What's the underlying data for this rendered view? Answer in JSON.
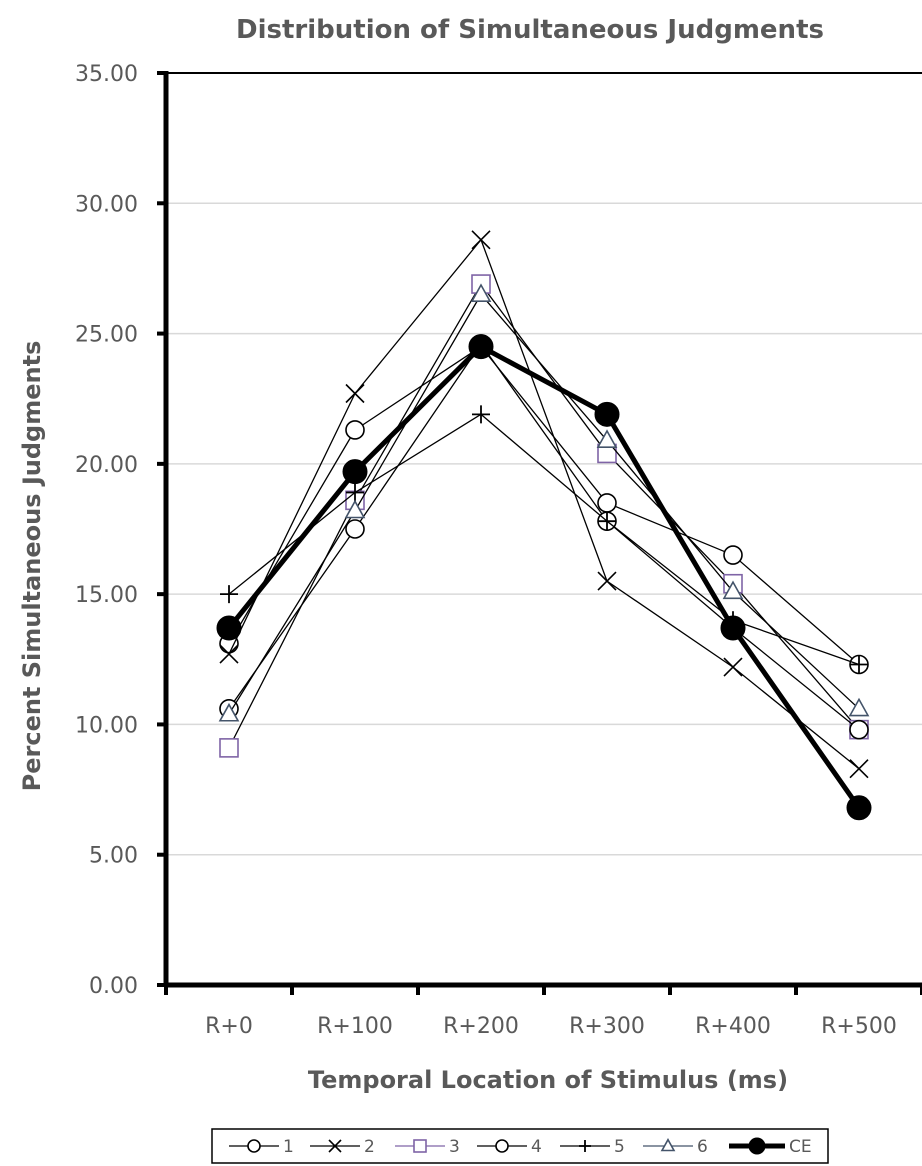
{
  "chart_data": {
    "type": "line",
    "title": "Distribution of Simultaneous Judgments",
    "xlabel": "Temporal Location of Stimulus (ms)",
    "ylabel": "Percent Simultaneous Judgments",
    "categories": [
      "R+0",
      "R+100",
      "R+200",
      "R+300",
      "R+400",
      "R+500"
    ],
    "ylim": [
      0,
      35
    ],
    "yticks": [
      "0.00",
      "5.00",
      "10.00",
      "15.00",
      "20.00",
      "25.00",
      "30.00",
      "35.00"
    ],
    "grid": "horizontal",
    "legend_position": "bottom",
    "series": [
      {
        "name": "1",
        "marker": "circle",
        "color": "#000000",
        "values": [
          13.1,
          21.3,
          24.5,
          18.5,
          16.5,
          12.3
        ]
      },
      {
        "name": "2",
        "marker": "x",
        "color": "#000000",
        "values": [
          12.7,
          22.7,
          28.6,
          15.5,
          12.2,
          8.3
        ]
      },
      {
        "name": "3",
        "marker": "square",
        "color": "#7f64a6",
        "values": [
          9.1,
          18.6,
          26.9,
          20.4,
          15.4,
          9.8
        ]
      },
      {
        "name": "4",
        "marker": "circle",
        "color": "#000000",
        "values": [
          10.6,
          17.5,
          24.6,
          17.8,
          13.7,
          9.8
        ]
      },
      {
        "name": "5",
        "marker": "plus",
        "color": "#000000",
        "values": [
          15.0,
          18.9,
          21.9,
          17.8,
          14.0,
          12.3
        ]
      },
      {
        "name": "6",
        "marker": "triangle",
        "color": "#44546a",
        "values": [
          10.4,
          18.2,
          26.5,
          20.9,
          15.1,
          10.6
        ]
      },
      {
        "name": "CE",
        "marker": "filled-circle",
        "color": "#000000",
        "thick": true,
        "values": [
          13.7,
          19.7,
          24.5,
          21.9,
          13.7,
          6.8
        ]
      }
    ]
  }
}
